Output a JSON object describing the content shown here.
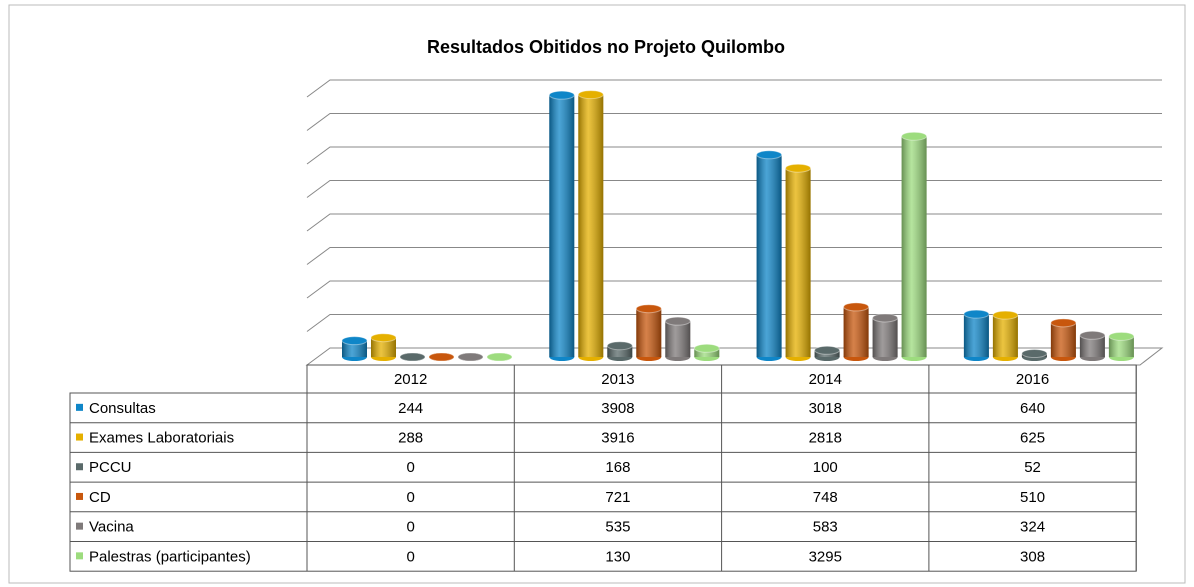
{
  "chart_data": {
    "type": "bar",
    "title": "Resultados Obitidos no Projeto Quilombo",
    "categories": [
      "2012",
      "2013",
      "2014",
      "2016"
    ],
    "series": [
      {
        "name": "Consultas",
        "color": "#0f86c8",
        "values": [
          244,
          3908,
          3018,
          640
        ]
      },
      {
        "name": "Exames Laboratoriais",
        "color": "#e5b000",
        "values": [
          288,
          3916,
          2818,
          625
        ]
      },
      {
        "name": "PCCU",
        "color": "#5a6a6a",
        "values": [
          0,
          168,
          100,
          52
        ]
      },
      {
        "name": "CD",
        "color": "#c8570d",
        "values": [
          0,
          721,
          748,
          510
        ]
      },
      {
        "name": "Vacina",
        "color": "#7f7a7a",
        "values": [
          0,
          535,
          583,
          324
        ]
      },
      {
        "name": "Palestras (participantes)",
        "color": "#9ddc7e",
        "values": [
          0,
          130,
          3295,
          308
        ]
      }
    ],
    "ylim": [
      0,
      4000
    ],
    "yticks": [
      0,
      500,
      1000,
      1500,
      2000,
      2500,
      3000,
      3500,
      4000
    ],
    "grid": true
  }
}
